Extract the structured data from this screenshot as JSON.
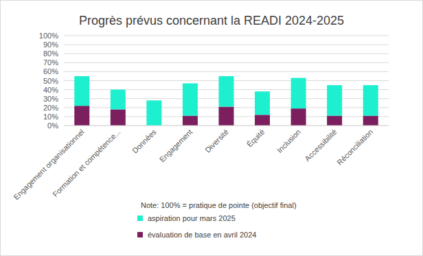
{
  "chart_data": {
    "type": "bar",
    "stacked": true,
    "title": "Progrès prévus concernant la READI 2024-2025",
    "annotation": "Note: 100% = pratique de pointe (objectif final)",
    "categories": [
      "Engagement organisationnel",
      "Formation et compétence...",
      "Données",
      "Engagement",
      "Diversité",
      "Équité",
      "Inclusion",
      "Accessibilité",
      "Réconciliation"
    ],
    "series": [
      {
        "name": "évaluation de base en avril 2024",
        "color": "#7b1f5e",
        "values": [
          22,
          18,
          0,
          11,
          21,
          12,
          19,
          11,
          11
        ]
      },
      {
        "name": "aspiration pour mars 2025",
        "color": "#1eefcf",
        "values": [
          33,
          22,
          28,
          36,
          34,
          26,
          34,
          34,
          34
        ]
      }
    ],
    "ylim": [
      0,
      100
    ],
    "yticks": [
      {
        "value": 0,
        "label": "0%"
      },
      {
        "value": 10,
        "label": "10%"
      },
      {
        "value": 20,
        "label": "20%"
      },
      {
        "value": 30,
        "label": "30%"
      },
      {
        "value": 40,
        "label": "40%"
      },
      {
        "value": 50,
        "label": "50%"
      },
      {
        "value": 60,
        "label": "60%"
      },
      {
        "value": 70,
        "label": "70%"
      },
      {
        "value": 80,
        "label": "80%"
      },
      {
        "value": 90,
        "label": "90%"
      },
      {
        "value": 100,
        "label": "100%"
      }
    ],
    "grid": true,
    "legend": "bottom"
  }
}
